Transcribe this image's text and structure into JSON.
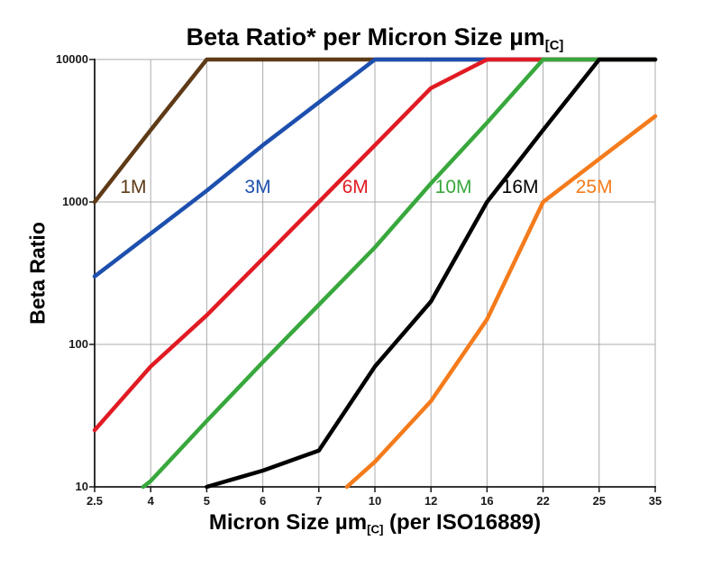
{
  "title": {
    "main": "Beta Ratio* per Micron Size µm",
    "sub": "[C]"
  },
  "y_axis": {
    "label": "Beta Ratio",
    "ticks": [
      "10000",
      "1000",
      "100",
      "10"
    ]
  },
  "x_axis": {
    "label_pre": "Micron Size µm",
    "label_sub": "[C]",
    "label_post": " (per ISO16889)",
    "ticks": [
      "2.5",
      "4",
      "5",
      "6",
      "7",
      "10",
      "12",
      "16",
      "22",
      "25",
      "35"
    ]
  },
  "chart_data": {
    "type": "line",
    "title": "Beta Ratio* per Micron Size µm[C]",
    "xlabel": "Micron Size µm[C] (per ISO16889)",
    "ylabel": "Beta Ratio",
    "x_scale": "ordinal",
    "y_scale": "log",
    "ylim": [
      10,
      10000
    ],
    "x_ticks": [
      2.5,
      4,
      5,
      6,
      7,
      10,
      12,
      16,
      22,
      25,
      35
    ],
    "grid": true,
    "grid_color": "#ababab",
    "axis_color": "#1a1a1a",
    "series": [
      {
        "name": "1M",
        "color": "#5e3a16",
        "label_fx": 0.069,
        "label_fy": 0.3,
        "points": [
          [
            2.5,
            1000
          ],
          [
            4,
            3200
          ],
          [
            5,
            10000
          ],
          [
            35,
            10000
          ]
        ]
      },
      {
        "name": "3M",
        "color": "#1d4fae",
        "label_fx": 0.291,
        "label_fy": 0.3,
        "points": [
          [
            2.5,
            300
          ],
          [
            4,
            600
          ],
          [
            5,
            1200
          ],
          [
            6,
            2500
          ],
          [
            7,
            5000
          ],
          [
            10,
            10000
          ],
          [
            35,
            10000
          ]
        ]
      },
      {
        "name": "6M",
        "color": "#e11b23",
        "label_fx": 0.465,
        "label_fy": 0.3,
        "points": [
          [
            2.5,
            25
          ],
          [
            4,
            70
          ],
          [
            5,
            160
          ],
          [
            6,
            400
          ],
          [
            7,
            1000
          ],
          [
            10,
            2500
          ],
          [
            12,
            6300
          ],
          [
            16,
            10000
          ],
          [
            35,
            10000
          ]
        ]
      },
      {
        "name": "10M",
        "color": "#38a83c",
        "label_fx": 0.64,
        "label_fy": 0.3,
        "points": [
          [
            3.8,
            10
          ],
          [
            4,
            11
          ],
          [
            5,
            29
          ],
          [
            6,
            75
          ],
          [
            7,
            190
          ],
          [
            10,
            480
          ],
          [
            12,
            1350
          ],
          [
            16,
            3600
          ],
          [
            22,
            10000
          ],
          [
            35,
            10000
          ]
        ]
      },
      {
        "name": "16M",
        "color": "#000000",
        "label_fx": 0.759,
        "label_fy": 0.3,
        "points": [
          [
            5,
            10
          ],
          [
            6,
            13
          ],
          [
            7,
            18
          ],
          [
            10,
            70
          ],
          [
            12,
            200
          ],
          [
            16,
            1000
          ],
          [
            22,
            3200
          ],
          [
            25,
            10000
          ],
          [
            35,
            10000
          ]
        ]
      },
      {
        "name": "25M",
        "color": "#f47b1c",
        "label_fx": 0.891,
        "label_fy": 0.3,
        "points": [
          [
            8.5,
            10
          ],
          [
            10,
            15
          ],
          [
            12,
            40
          ],
          [
            16,
            150
          ],
          [
            22,
            1000
          ],
          [
            25,
            2000
          ],
          [
            35,
            4000
          ]
        ]
      }
    ]
  }
}
